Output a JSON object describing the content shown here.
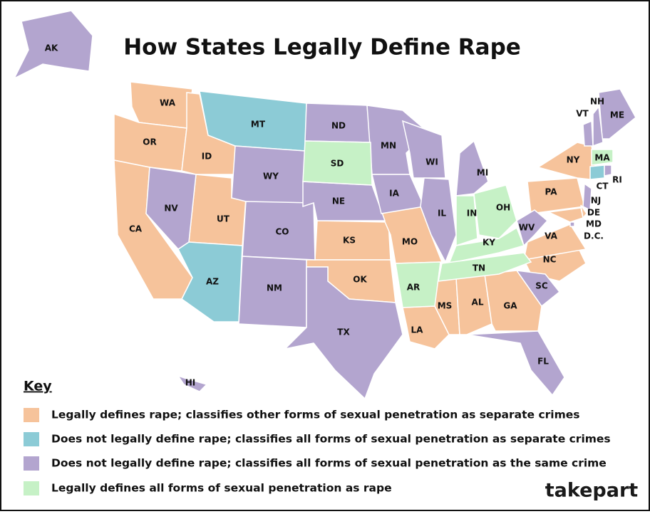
{
  "title": "How States Legally Define Rape",
  "key": {
    "title": "Key",
    "items": [
      {
        "label": "Legally defines rape; classifies other forms of sexual penetration as separate crimes",
        "color": "#f6c39b",
        "states": [
          "WA",
          "OR",
          "CA",
          "ID",
          "UT",
          "KS",
          "OK",
          "MO",
          "LA",
          "MS",
          "AL",
          "GA",
          "NC",
          "VA",
          "PA",
          "NY",
          "MD",
          "DE"
        ]
      },
      {
        "label": "Does not legally define rape; classifies all forms of sexual penetration as separate crimes",
        "color": "#8ccbd6",
        "states": [
          "MT",
          "AZ",
          "CT"
        ]
      },
      {
        "label": "Does not legally define rape; classifies all forms of sexual penetration as the same crime",
        "color": "#b3a5cf",
        "states": [
          "AK",
          "NV",
          "WY",
          "CO",
          "NM",
          "ND",
          "NE",
          "TX",
          "MN",
          "IA",
          "WI",
          "IL",
          "MI",
          "WV",
          "SC",
          "FL",
          "HI",
          "ME",
          "NH",
          "VT",
          "NJ",
          "RI",
          "D.C."
        ]
      },
      {
        "label": "Legally defines all forms of sexual penetration as rape",
        "color": "#c6f1c6",
        "states": [
          "SD",
          "AR",
          "IN",
          "OH",
          "KY",
          "TN",
          "MA"
        ]
      }
    ]
  },
  "logo": "takepart"
}
